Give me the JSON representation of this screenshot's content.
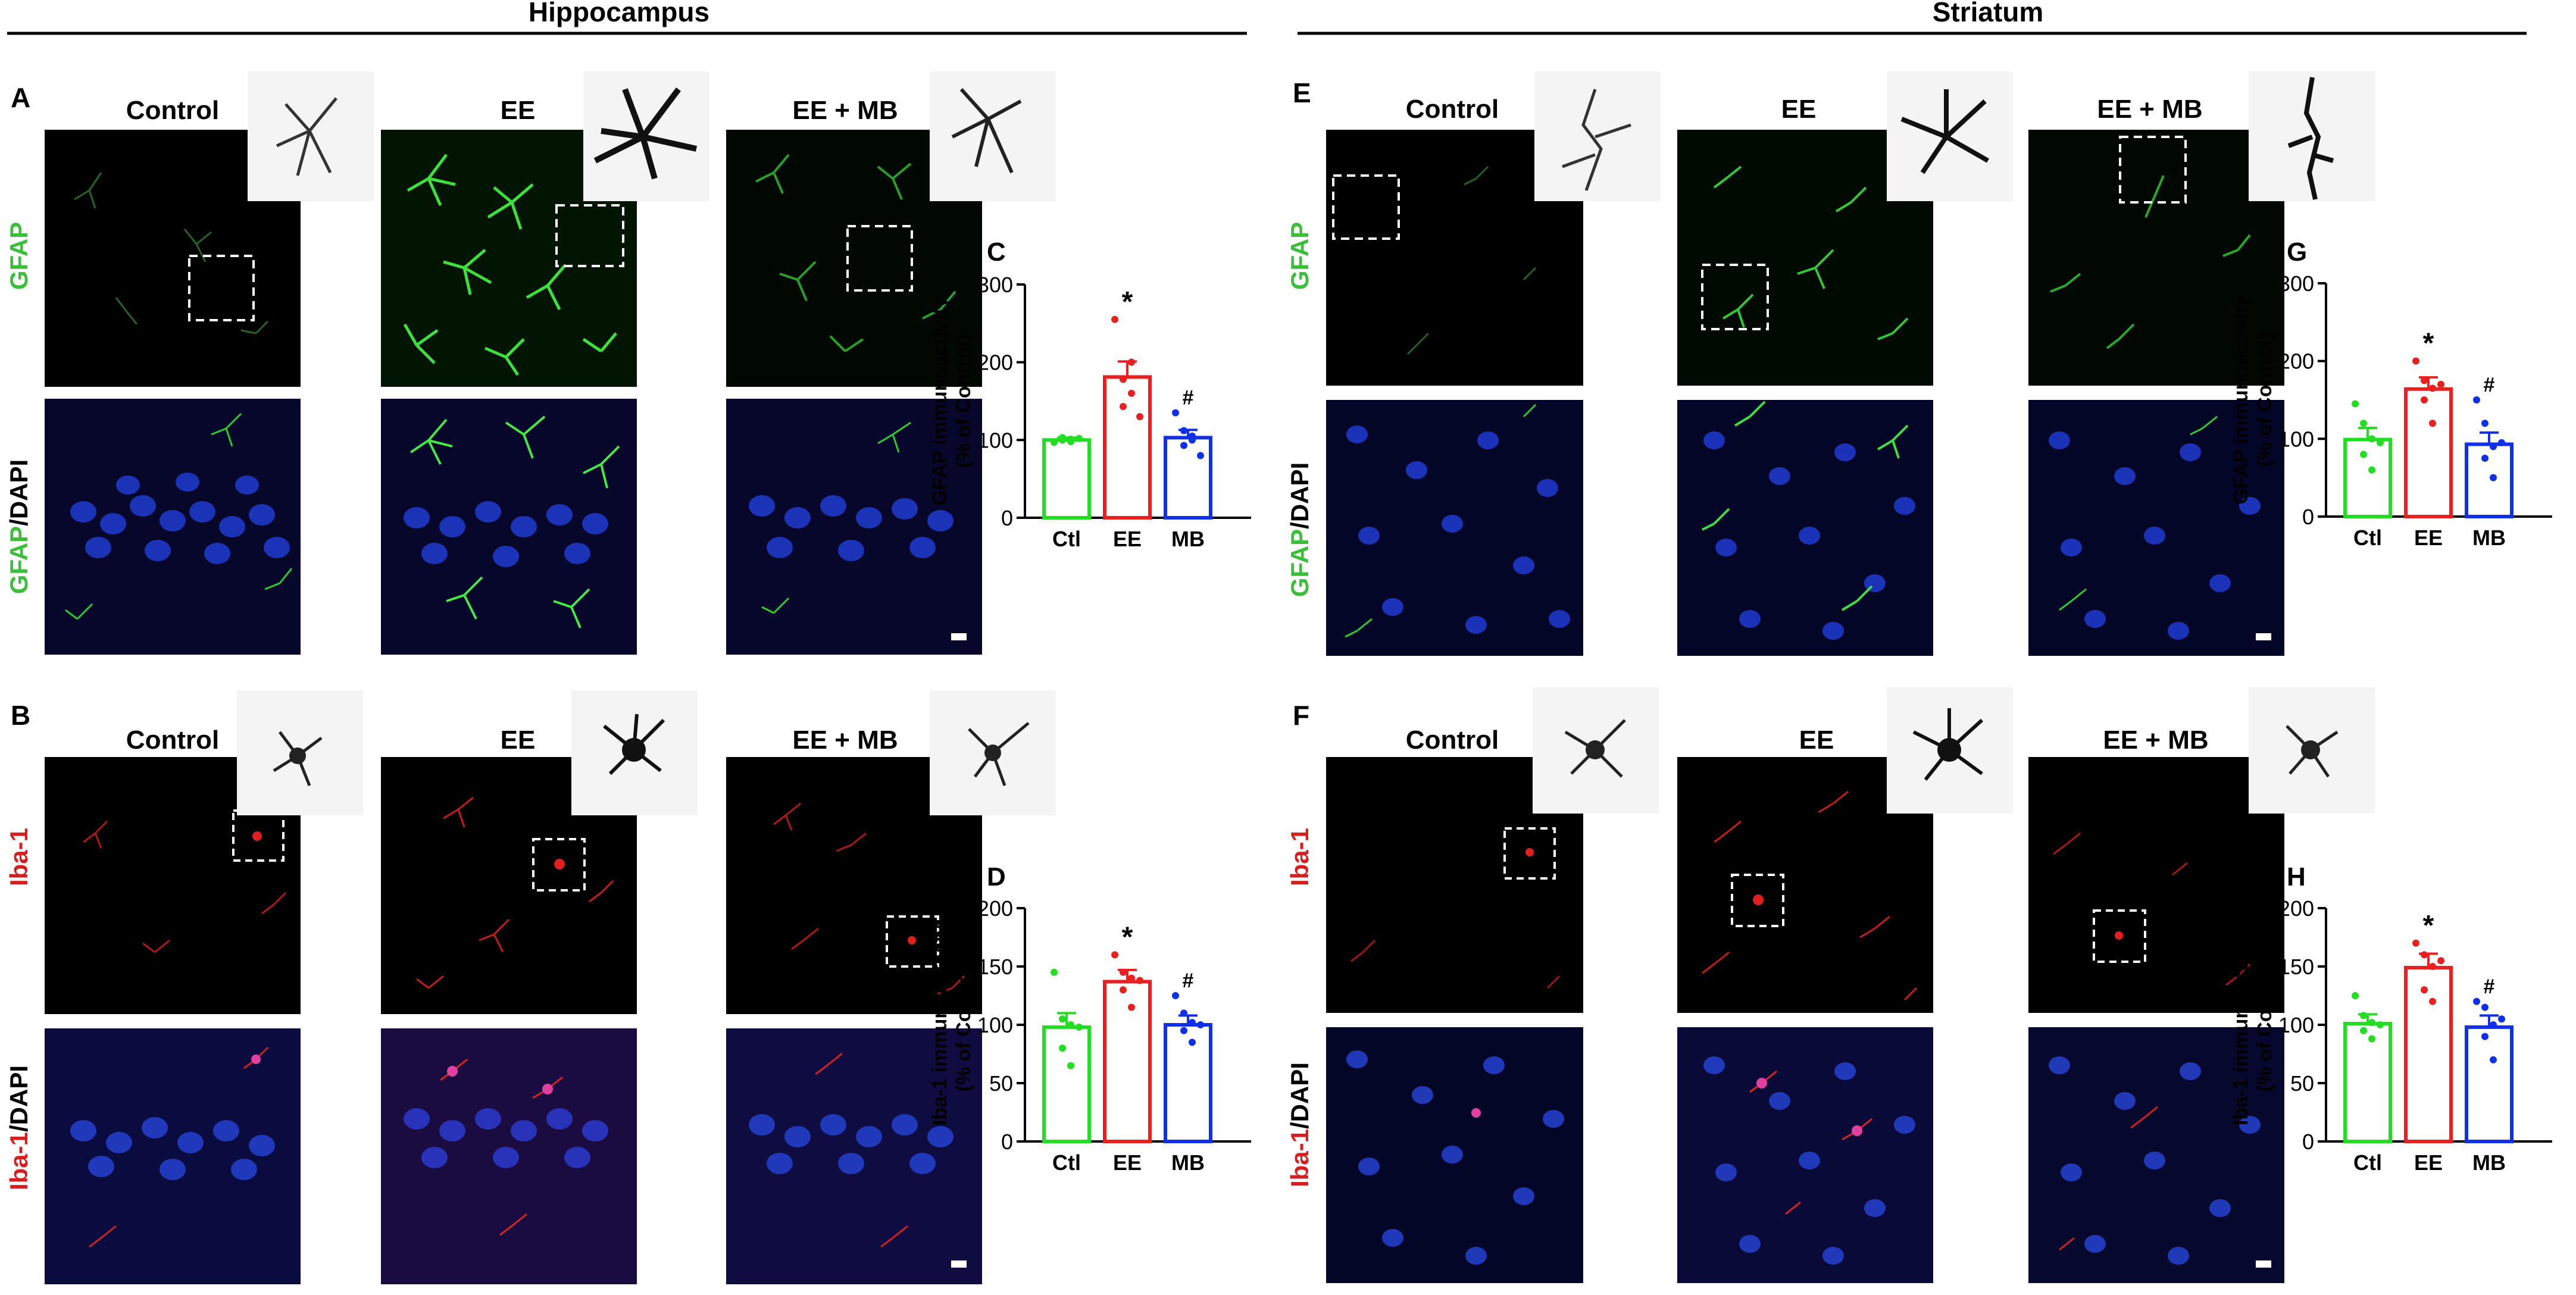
{
  "colors": {
    "ctl": "#22dd22",
    "ee": "#e82020",
    "mb": "#1030e8",
    "gfap": "#3bbf3b",
    "iba": "#d42020",
    "dapi": "#1a2a9a"
  },
  "sections": [
    {
      "title": "Hippocampus"
    },
    {
      "title": "Striatum"
    }
  ],
  "panels": {
    "A": {
      "letter": "A",
      "row_label_top": "GFAP",
      "row_label_bottom_marker": "GFAP",
      "row_label_bottom_rest": "/DAPI",
      "groups": [
        "Control",
        "EE",
        "EE + MB"
      ]
    },
    "B": {
      "letter": "B",
      "row_label_top": "Iba-1",
      "row_label_bottom_marker": "Iba-1",
      "row_label_bottom_rest": "/DAPI",
      "groups": [
        "Control",
        "EE",
        "EE + MB"
      ]
    },
    "E": {
      "letter": "E",
      "row_label_top": "GFAP",
      "row_label_bottom_marker": "GFAP",
      "row_label_bottom_rest": "/DAPI",
      "groups": [
        "Control",
        "EE",
        "EE + MB"
      ]
    },
    "F": {
      "letter": "F",
      "row_label_top": "Iba-1",
      "row_label_bottom_marker": "Iba-1",
      "row_label_bottom_rest": "/DAPI",
      "groups": [
        "Control",
        "EE",
        "EE + MB"
      ]
    }
  },
  "chart_data": [
    {
      "panel": "C",
      "type": "bar",
      "categories": [
        "Ctl",
        "EE",
        "MB"
      ],
      "values": [
        100,
        181,
        103
      ],
      "sem": [
        3,
        20,
        10
      ],
      "ylabel": "GFAP immunoactivity",
      "ylabel2": "(% of Control)",
      "ylim": [
        0,
        300
      ],
      "yticks": [
        0,
        100,
        200,
        300
      ],
      "significance": [
        "",
        "*",
        "#"
      ],
      "points": [
        [
          97,
          100,
          101,
          103,
          98,
          102
        ],
        [
          255,
          178,
          160,
          143,
          200,
          130
        ],
        [
          135,
          112,
          100,
          93,
          105,
          80
        ]
      ]
    },
    {
      "panel": "D",
      "type": "bar",
      "categories": [
        "Ctl",
        "EE",
        "MB"
      ],
      "values": [
        98,
        137,
        100
      ],
      "sem": [
        12,
        10,
        8
      ],
      "ylabel": "Iba-1 immunoactivity",
      "ylabel2": "(% of Control)",
      "ylim": [
        0,
        200
      ],
      "yticks": [
        0,
        50,
        100,
        150,
        200
      ],
      "significance": [
        "",
        "*",
        "#"
      ],
      "points": [
        [
          145,
          105,
          100,
          80,
          65,
          98
        ],
        [
          160,
          145,
          140,
          130,
          115,
          138
        ],
        [
          125,
          110,
          102,
          95,
          85,
          100
        ]
      ]
    },
    {
      "panel": "G",
      "type": "bar",
      "categories": [
        "Ctl",
        "EE",
        "MB"
      ],
      "values": [
        99,
        164,
        93
      ],
      "sem": [
        15,
        15,
        15
      ],
      "ylabel": "GFAP immunoactivity",
      "ylabel2": "(% of Control)",
      "ylim": [
        0,
        300
      ],
      "yticks": [
        0,
        100,
        200,
        300
      ],
      "significance": [
        "",
        "*",
        "#"
      ],
      "points": [
        [
          145,
          120,
          100,
          80,
          60,
          95
        ],
        [
          200,
          175,
          165,
          150,
          120,
          170
        ],
        [
          150,
          120,
          90,
          75,
          50,
          95
        ]
      ]
    },
    {
      "panel": "H",
      "type": "bar",
      "categories": [
        "Ctl",
        "EE",
        "MB"
      ],
      "values": [
        101,
        149,
        98
      ],
      "sem": [
        8,
        12,
        10
      ],
      "ylabel": "Iba-1 immunoactivity",
      "ylabel2": "(% of Control)",
      "ylim": [
        0,
        200
      ],
      "yticks": [
        0,
        50,
        100,
        150,
        200
      ],
      "significance": [
        "",
        "*",
        "#"
      ],
      "points": [
        [
          125,
          108,
          102,
          95,
          88,
          100
        ],
        [
          170,
          160,
          150,
          130,
          120,
          155
        ],
        [
          120,
          115,
          100,
          90,
          70,
          105
        ]
      ]
    }
  ]
}
